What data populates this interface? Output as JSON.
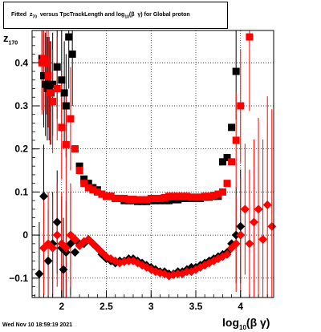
{
  "header": {
    "title_html": "Fitted &nbsp;z<sub>70</sub> &nbsp;versus TpcTrackLength and log<sub>10</sub>(β &nbsp;γ) for Global proton"
  },
  "footer": {
    "datestamp": "Wed Nov 10 18:59:19 2021"
  },
  "axes": {
    "ylabel_html": "z<sub style=\"font-size:7px\">170</sub>",
    "xlabel_html": "log<sub style=\"font-size:8px\">10</sub>(β γ)"
  },
  "chart_data": {
    "type": "scatter",
    "xlim": [
      1.67,
      4.37
    ],
    "ylim": [
      -0.145,
      0.475
    ],
    "x_ticks": [
      2,
      2.5,
      3,
      3.5,
      4
    ],
    "x_tick_labels": [
      "2",
      "2.5",
      "3",
      "3.5",
      "4"
    ],
    "y_ticks": [
      -0.1,
      0,
      0.1,
      0.2,
      0.3,
      0.4
    ],
    "y_tick_labels": [
      "−0.1",
      "0",
      "0.1",
      "0.2",
      "0.3",
      "0.4"
    ],
    "grid": true,
    "series": [
      {
        "color": "#000000",
        "marker": "square",
        "points": [
          [
            1.78,
            0.41
          ],
          [
            1.8,
            0.37
          ],
          [
            1.82,
            0.35
          ],
          [
            1.84,
            0.34
          ],
          [
            1.86,
            0.34
          ],
          [
            1.88,
            0.33
          ],
          [
            1.9,
            0.35
          ],
          [
            1.95,
            0.39
          ],
          [
            2.0,
            0.36
          ],
          [
            2.03,
            0.33
          ],
          [
            2.05,
            0.3
          ],
          [
            2.08,
            0.46
          ],
          [
            2.12,
            0.42
          ],
          [
            2.15,
            0.2
          ],
          [
            2.2,
            0.16
          ],
          [
            2.25,
            0.13
          ],
          [
            2.3,
            0.12
          ],
          [
            2.35,
            0.11
          ],
          [
            2.4,
            0.105
          ],
          [
            2.45,
            0.095
          ],
          [
            2.5,
            0.09
          ],
          [
            2.55,
            0.09
          ],
          [
            2.6,
            0.085
          ],
          [
            2.65,
            0.085
          ],
          [
            2.7,
            0.08
          ],
          [
            2.75,
            0.08
          ],
          [
            2.8,
            0.08
          ],
          [
            2.85,
            0.078
          ],
          [
            2.9,
            0.078
          ],
          [
            2.95,
            0.078
          ],
          [
            3.0,
            0.08
          ],
          [
            3.05,
            0.08
          ],
          [
            3.1,
            0.08
          ],
          [
            3.15,
            0.08
          ],
          [
            3.2,
            0.08
          ],
          [
            3.25,
            0.082
          ],
          [
            3.3,
            0.082
          ],
          [
            3.35,
            0.085
          ],
          [
            3.4,
            0.085
          ],
          [
            3.45,
            0.085
          ],
          [
            3.5,
            0.085
          ],
          [
            3.55,
            0.085
          ],
          [
            3.6,
            0.088
          ],
          [
            3.65,
            0.088
          ],
          [
            3.7,
            0.09
          ],
          [
            3.75,
            0.09
          ],
          [
            3.8,
            0.17
          ],
          [
            3.85,
            0.18
          ],
          [
            3.9,
            0.25
          ],
          [
            3.95,
            0.38
          ]
        ]
      },
      {
        "color": "#000000",
        "marker": "diamond",
        "points": [
          [
            1.75,
            -0.09
          ],
          [
            1.8,
            0.09
          ],
          [
            1.85,
            -0.06
          ],
          [
            1.9,
            -0.02
          ],
          [
            1.95,
            0.03
          ],
          [
            2.0,
            -0.03
          ],
          [
            2.02,
            -0.08
          ],
          [
            2.05,
            -0.04
          ],
          [
            2.1,
            -0.02
          ],
          [
            2.15,
            -0.04
          ],
          [
            2.2,
            -0.02
          ],
          [
            2.25,
            -0.02
          ],
          [
            2.3,
            -0.01
          ],
          [
            2.35,
            -0.02
          ],
          [
            2.4,
            -0.03
          ],
          [
            2.45,
            -0.045
          ],
          [
            2.5,
            -0.055
          ],
          [
            2.55,
            -0.06
          ],
          [
            2.6,
            -0.065
          ],
          [
            2.65,
            -0.06
          ],
          [
            2.7,
            -0.06
          ],
          [
            2.75,
            -0.055
          ],
          [
            2.8,
            -0.055
          ],
          [
            2.85,
            -0.06
          ],
          [
            2.9,
            -0.065
          ],
          [
            2.95,
            -0.07
          ],
          [
            3.0,
            -0.075
          ],
          [
            3.05,
            -0.08
          ],
          [
            3.1,
            -0.085
          ],
          [
            3.15,
            -0.085
          ],
          [
            3.2,
            -0.09
          ],
          [
            3.25,
            -0.09
          ],
          [
            3.3,
            -0.085
          ],
          [
            3.35,
            -0.085
          ],
          [
            3.4,
            -0.08
          ],
          [
            3.45,
            -0.075
          ],
          [
            3.5,
            -0.075
          ],
          [
            3.55,
            -0.07
          ],
          [
            3.6,
            -0.065
          ],
          [
            3.65,
            -0.06
          ],
          [
            3.7,
            -0.055
          ],
          [
            3.75,
            -0.05
          ],
          [
            3.8,
            -0.045
          ],
          [
            3.85,
            -0.04
          ],
          [
            3.9,
            -0.02
          ],
          [
            3.95,
            0.0
          ],
          [
            4.0,
            0.02
          ]
        ]
      },
      {
        "color": "#ff0000",
        "marker": "square",
        "points": [
          [
            1.78,
            0.4
          ],
          [
            1.8,
            0.41
          ],
          [
            1.83,
            0.4
          ],
          [
            1.85,
            0.37
          ],
          [
            1.87,
            0.33
          ],
          [
            1.9,
            0.31
          ],
          [
            1.95,
            0.34
          ],
          [
            2.0,
            0.25
          ],
          [
            2.05,
            0.21
          ],
          [
            2.1,
            0.27
          ],
          [
            2.15,
            0.2
          ],
          [
            2.2,
            0.15
          ],
          [
            2.25,
            0.12
          ],
          [
            2.3,
            0.11
          ],
          [
            2.35,
            0.105
          ],
          [
            2.4,
            0.1
          ],
          [
            2.45,
            0.095
          ],
          [
            2.5,
            0.09
          ],
          [
            2.55,
            0.09
          ],
          [
            2.6,
            0.085
          ],
          [
            2.65,
            0.085
          ],
          [
            2.7,
            0.085
          ],
          [
            2.75,
            0.083
          ],
          [
            2.8,
            0.083
          ],
          [
            2.85,
            0.082
          ],
          [
            2.9,
            0.082
          ],
          [
            2.95,
            0.082
          ],
          [
            3.0,
            0.085
          ],
          [
            3.05,
            0.085
          ],
          [
            3.1,
            0.085
          ],
          [
            3.15,
            0.087
          ],
          [
            3.2,
            0.09
          ],
          [
            3.25,
            0.09
          ],
          [
            3.3,
            0.09
          ],
          [
            3.35,
            0.09
          ],
          [
            3.4,
            0.09
          ],
          [
            3.45,
            0.088
          ],
          [
            3.5,
            0.088
          ],
          [
            3.55,
            0.088
          ],
          [
            3.6,
            0.09
          ],
          [
            3.65,
            0.09
          ],
          [
            3.7,
            0.092
          ],
          [
            3.75,
            0.095
          ],
          [
            3.8,
            0.1
          ],
          [
            3.85,
            0.12
          ],
          [
            3.9,
            0.17
          ],
          [
            3.95,
            0.22
          ],
          [
            4.0,
            0.3
          ],
          [
            4.1,
            0.46
          ]
        ]
      },
      {
        "color": "#ff0000",
        "marker": "diamond",
        "points": [
          [
            1.8,
            -0.03
          ],
          [
            1.85,
            -0.02
          ],
          [
            1.9,
            -0.03
          ],
          [
            1.95,
            0.0
          ],
          [
            2.0,
            -0.02
          ],
          [
            2.05,
            -0.03
          ],
          [
            2.1,
            0.0
          ],
          [
            2.15,
            -0.01
          ],
          [
            2.2,
            -0.025
          ],
          [
            2.25,
            -0.015
          ],
          [
            2.3,
            -0.01
          ],
          [
            2.35,
            -0.02
          ],
          [
            2.4,
            -0.03
          ],
          [
            2.45,
            -0.04
          ],
          [
            2.5,
            -0.05
          ],
          [
            2.55,
            -0.055
          ],
          [
            2.6,
            -0.06
          ],
          [
            2.65,
            -0.065
          ],
          [
            2.7,
            -0.062
          ],
          [
            2.75,
            -0.06
          ],
          [
            2.8,
            -0.06
          ],
          [
            2.85,
            -0.065
          ],
          [
            2.9,
            -0.07
          ],
          [
            2.95,
            -0.075
          ],
          [
            3.0,
            -0.08
          ],
          [
            3.05,
            -0.085
          ],
          [
            3.1,
            -0.088
          ],
          [
            3.15,
            -0.09
          ],
          [
            3.2,
            -0.095
          ],
          [
            3.25,
            -0.092
          ],
          [
            3.3,
            -0.09
          ],
          [
            3.35,
            -0.09
          ],
          [
            3.4,
            -0.085
          ],
          [
            3.45,
            -0.085
          ],
          [
            3.5,
            -0.08
          ],
          [
            3.55,
            -0.075
          ],
          [
            3.6,
            -0.07
          ],
          [
            3.65,
            -0.065
          ],
          [
            3.7,
            -0.06
          ],
          [
            3.75,
            -0.055
          ],
          [
            3.8,
            -0.05
          ],
          [
            3.85,
            -0.045
          ],
          [
            3.9,
            -0.03
          ],
          [
            3.95,
            -0.02
          ],
          [
            4.0,
            0.0
          ],
          [
            4.05,
            0.06
          ],
          [
            4.1,
            -0.02
          ],
          [
            4.15,
            0.03
          ],
          [
            4.2,
            0.06
          ],
          [
            4.25,
            -0.01
          ],
          [
            4.3,
            0.07
          ],
          [
            4.35,
            0.02
          ]
        ]
      }
    ]
  }
}
